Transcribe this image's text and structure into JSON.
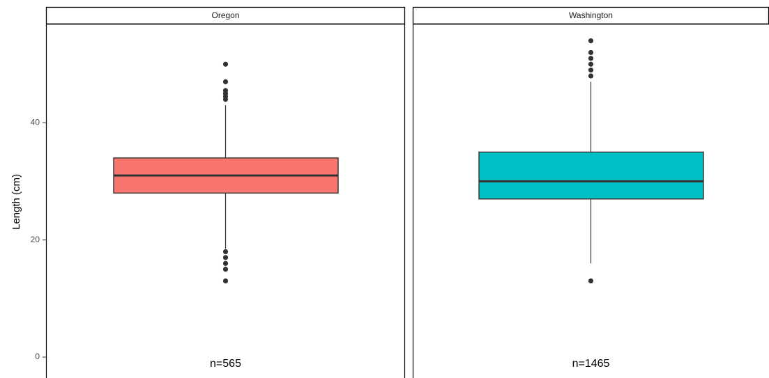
{
  "chart_data": {
    "type": "boxplot",
    "ylabel": "Length (cm)",
    "ylim": [
      0,
      58
    ],
    "yticks": [
      0,
      20,
      40
    ],
    "grid": false,
    "panels": [
      {
        "name": "Oregon",
        "color": "#F8766D",
        "q1": 28,
        "median": 31,
        "q3": 34,
        "whisker_low": 18.5,
        "whisker_high": 43,
        "outliers": [
          44,
          44.5,
          45,
          45.5,
          47,
          50,
          18,
          17,
          16,
          15,
          13
        ],
        "n_label": "n=565"
      },
      {
        "name": "Washington",
        "color": "#00BFC4",
        "q1": 27,
        "median": 30,
        "q3": 35,
        "whisker_low": 16,
        "whisker_high": 47,
        "outliers": [
          48,
          49,
          50,
          51,
          52,
          54,
          13
        ],
        "n_label": "n=1465"
      }
    ]
  }
}
